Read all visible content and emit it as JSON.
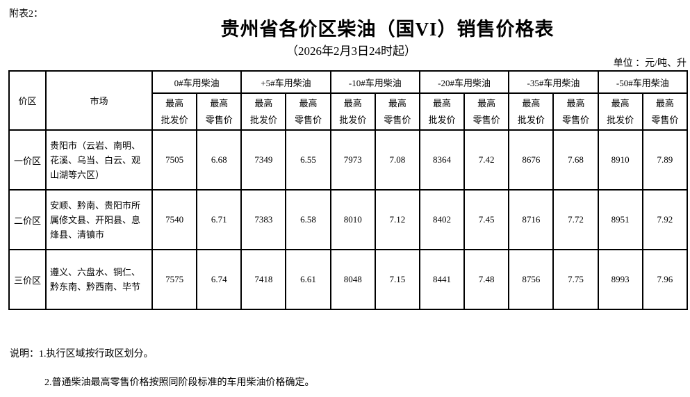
{
  "page": {
    "attachment_label": "附表2：",
    "title": "贵州省各价区柴油（国VI）销售价格表",
    "subtitle": "（2026年2月3日24时起）",
    "unit_label": "单位 ：元/吨、升"
  },
  "table": {
    "header": {
      "zone": "价区",
      "market": "市场",
      "fuels": [
        "0#车用柴油",
        "+5#车用柴油",
        "-10#车用柴油",
        "-20#车用柴油",
        "-35#车用柴油",
        "-50#车用柴油"
      ],
      "sub_wholesale": [
        "最高",
        "批发价"
      ],
      "sub_retail": [
        "最高",
        "零售价"
      ]
    },
    "rows": [
      {
        "zone": "一价区",
        "market": "贵阳市（云岩、南明、花溪、乌当、白云、观山湖等六区）",
        "values": [
          "7505",
          "6.68",
          "7349",
          "6.55",
          "7973",
          "7.08",
          "8364",
          "7.42",
          "8676",
          "7.68",
          "8910",
          "7.89"
        ]
      },
      {
        "zone": "二价区",
        "market": "安顺、黔南、贵阳市所属修文县、开阳县、息烽县、清镇市",
        "values": [
          "7540",
          "6.71",
          "7383",
          "6.58",
          "8010",
          "7.12",
          "8402",
          "7.45",
          "8716",
          "7.72",
          "8951",
          "7.92"
        ]
      },
      {
        "zone": "三价区",
        "market": "遵义、六盘水、铜仁、黔东南、黔西南、毕节",
        "values": [
          "7575",
          "6.74",
          "7418",
          "6.61",
          "8048",
          "7.15",
          "8441",
          "7.48",
          "8756",
          "7.75",
          "8993",
          "7.96"
        ]
      }
    ]
  },
  "notes": {
    "line1": "说明：1.执行区域按行政区划分。",
    "line2": "2.普通柴油最高零售价格按照同阶段标准的车用柴油价格确定。"
  },
  "colors": {
    "text": "#000000",
    "border": "#000000",
    "background": "#ffffff"
  }
}
